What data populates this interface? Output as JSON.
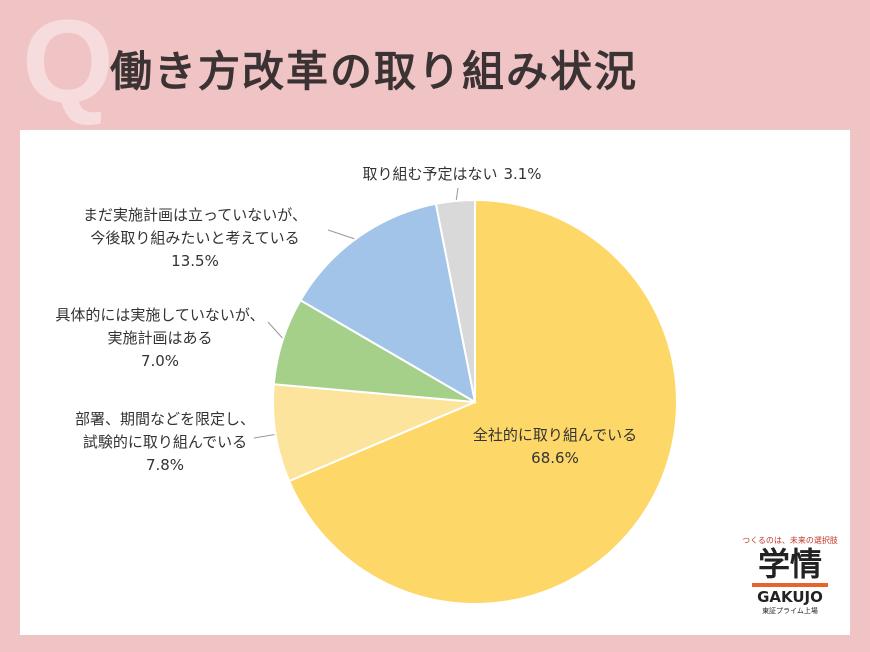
{
  "badge": "Q",
  "chart_data": {
    "type": "pie",
    "title": "働き方改革の取り組み状況",
    "categories": [
      "全社的に取り組んでいる",
      "部署、期間などを限定し、\n試験的に取り組んでいる",
      "具体的には実施していないが、\n実施計画はある",
      "まだ実施計画は立っていないが、\n今後取り組みたいと考えている",
      "取り組む予定はない"
    ],
    "values": [
      68.6,
      7.8,
      7.0,
      13.5,
      3.1
    ],
    "value_labels": [
      "68.6%",
      "7.8%",
      "7.0%",
      "13.5%",
      "3.1%"
    ],
    "colors": [
      "#fdd868",
      "#fde49c",
      "#a5d08a",
      "#a2c4e8",
      "#d9d9d9"
    ]
  },
  "logo": {
    "tagline": "つくるのは、未来の選択肢",
    "name": "学情",
    "latin": "GAKUJO",
    "note": "東証プライム上場"
  }
}
